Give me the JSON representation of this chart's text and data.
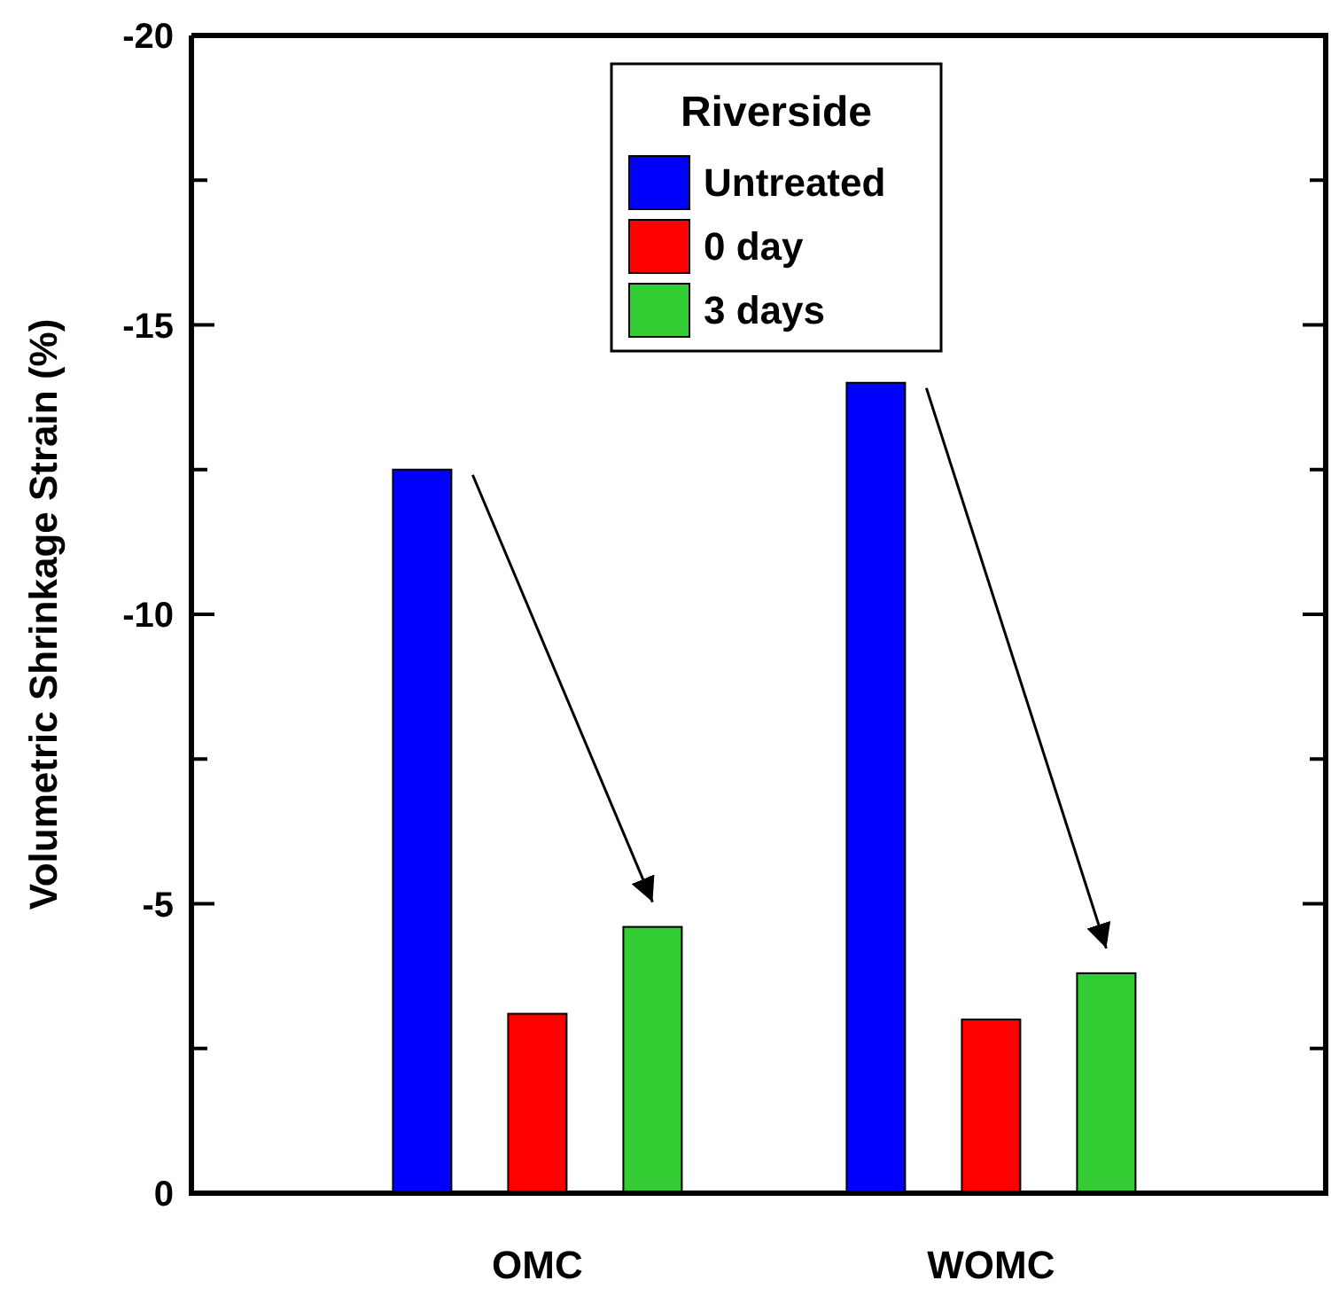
{
  "chart_data": {
    "type": "bar",
    "ylabel": "Volumetric Shrinkage Strain (%)",
    "legend_title": "Riverside",
    "categories": [
      "OMC",
      "WOMC"
    ],
    "series": [
      {
        "name": "Untreated",
        "color": "#0000ff",
        "values": [
          -12.5,
          -14.0
        ]
      },
      {
        "name": "0 day",
        "color": "#ff0000",
        "values": [
          -3.1,
          -3.0
        ]
      },
      {
        "name": "3 days",
        "color": "#33cc33",
        "values": [
          -4.6,
          -3.8
        ]
      }
    ],
    "ylim": [
      0,
      -20
    ],
    "yticks": [
      0,
      {
        "value": -2.5,
        "label": null
      },
      -5,
      {
        "value": -7.5,
        "label": null
      },
      -10,
      {
        "value": -12.5,
        "label": null
      },
      -15,
      {
        "value": -17.5,
        "label": null
      },
      -20
    ],
    "legend": "top"
  }
}
